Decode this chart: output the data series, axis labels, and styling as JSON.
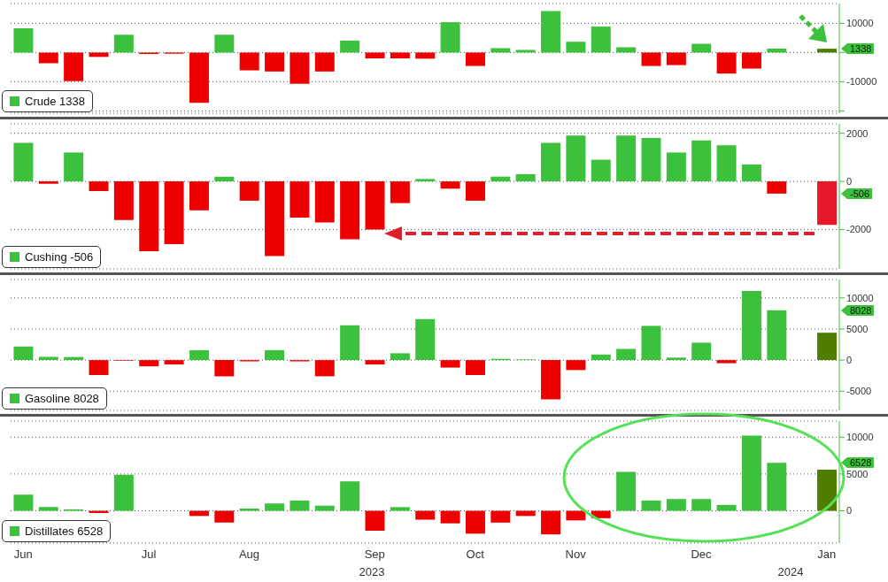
{
  "chart_data": [
    {
      "type": "bar",
      "categories": [
        null,
        null,
        null,
        null,
        null,
        null,
        null,
        null,
        null,
        null,
        null,
        null,
        null,
        null,
        null,
        null,
        null,
        null,
        null,
        null,
        null,
        null,
        null,
        null,
        null,
        null,
        null,
        null,
        null,
        null,
        null,
        null,
        null
      ],
      "series": [
        {
          "name": "Crude 1338",
          "color": "#3cc13c",
          "values": [
            8300,
            -3700,
            -9800,
            -1500,
            6100,
            -500,
            -400,
            -17200,
            6100,
            -6100,
            -6500,
            -10700,
            -6500,
            4100,
            -2000,
            -2000,
            -2100,
            10400,
            -4600,
            1500,
            900,
            14200,
            3700,
            8900,
            1800,
            -4600,
            -4300,
            3000,
            -7200,
            -5500,
            1338,
            null,
            1300
          ],
          "colors": [
            "#3cc13c",
            "#ee0000",
            "#ee0000",
            "#ee0000",
            "#3cc13c",
            "#ee0000",
            "#ee0000",
            "#ee0000",
            "#3cc13c",
            "#ee0000",
            "#ee0000",
            "#ee0000",
            "#ee0000",
            "#3cc13c",
            "#ee0000",
            "#ee0000",
            "#ee0000",
            "#3cc13c",
            "#ee0000",
            "#3cc13c",
            "#3cc13c",
            "#3cc13c",
            "#3cc13c",
            "#3cc13c",
            "#3cc13c",
            "#ee0000",
            "#ee0000",
            "#3cc13c",
            "#ee0000",
            "#ee0000",
            "#3cc13c",
            null,
            "#4e7d00"
          ]
        }
      ],
      "ylim": [
        -20800,
        16800
      ],
      "yticks": [
        {
          "value": -20000,
          "label": null
        },
        -10000,
        {
          "value": 0,
          "label": null
        },
        10000
      ],
      "grid": "y",
      "legend": "bottom left",
      "tick_labels": "y",
      "annotations": [
        "1338"
      ]
    },
    {
      "type": "bar",
      "categories": [
        null,
        null,
        null,
        null,
        null,
        null,
        null,
        null,
        null,
        null,
        null,
        null,
        null,
        null,
        null,
        null,
        null,
        null,
        null,
        null,
        null,
        null,
        null,
        null,
        null,
        null,
        null,
        null,
        null,
        null,
        null,
        null,
        null
      ],
      "series": [
        {
          "name": "Cushing -506",
          "color": "#3cc13c",
          "values": [
            1600,
            -100,
            1200,
            -400,
            -1600,
            -2900,
            -2600,
            -1200,
            200,
            -800,
            -3100,
            -1500,
            -1700,
            -2400,
            -2000,
            -900,
            100,
            -300,
            -800,
            200,
            300,
            1600,
            1900,
            900,
            1900,
            1800,
            1200,
            1700,
            1500,
            700,
            -506,
            null,
            -1800
          ],
          "colors": [
            "#3cc13c",
            "#ee0000",
            "#3cc13c",
            "#ee0000",
            "#ee0000",
            "#ee0000",
            "#ee0000",
            "#ee0000",
            "#3cc13c",
            "#ee0000",
            "#ee0000",
            "#ee0000",
            "#ee0000",
            "#ee0000",
            "#ee0000",
            "#ee0000",
            "#3cc13c",
            "#ee0000",
            "#ee0000",
            "#3cc13c",
            "#3cc13c",
            "#3cc13c",
            "#3cc13c",
            "#3cc13c",
            "#3cc13c",
            "#3cc13c",
            "#3cc13c",
            "#3cc13c",
            "#3cc13c",
            "#3cc13c",
            "#ee0000",
            null,
            "#e8182b"
          ]
        }
      ],
      "ylim": [
        -3630,
        2390
      ],
      "yticks": [
        -2000,
        0,
        2000
      ],
      "grid": "y",
      "legend": "bottom left",
      "tick_labels": "y",
      "annotations": [
        "-506"
      ]
    },
    {
      "type": "bar",
      "categories": [
        null,
        null,
        null,
        null,
        null,
        null,
        null,
        null,
        null,
        null,
        null,
        null,
        null,
        null,
        null,
        null,
        null,
        null,
        null,
        null,
        null,
        null,
        null,
        null,
        null,
        null,
        null,
        null,
        null,
        null,
        null,
        null,
        null
      ],
      "series": [
        {
          "name": "Gasoline 8028",
          "color": "#3cc13c",
          "values": [
            2200,
            500,
            500,
            -2400,
            -100,
            -1000,
            -700,
            1600,
            -2600,
            -200,
            1600,
            -200,
            -2600,
            5600,
            -700,
            1100,
            6600,
            -1200,
            -2400,
            200,
            100,
            -6300,
            -1600,
            900,
            1800,
            5500,
            400,
            2800,
            -500,
            11100,
            8028,
            null,
            4400
          ],
          "colors": [
            "#3cc13c",
            "#3cc13c",
            "#3cc13c",
            "#ee0000",
            "#ee0000",
            "#ee0000",
            "#ee0000",
            "#3cc13c",
            "#ee0000",
            "#ee0000",
            "#3cc13c",
            "#ee0000",
            "#ee0000",
            "#3cc13c",
            "#ee0000",
            "#3cc13c",
            "#3cc13c",
            "#ee0000",
            "#ee0000",
            "#3cc13c",
            "#3cc13c",
            "#ee0000",
            "#ee0000",
            "#3cc13c",
            "#3cc13c",
            "#3cc13c",
            "#3cc13c",
            "#3cc13c",
            "#ee0000",
            "#3cc13c",
            "#3cc13c",
            null,
            "#4e7d00"
          ]
        }
      ],
      "ylim": [
        -8090,
        12960
      ],
      "yticks": [
        -5000,
        0,
        5000,
        10000
      ],
      "grid": "y",
      "legend": "bottom left",
      "tick_labels": "y",
      "annotations": [
        "8028"
      ]
    },
    {
      "type": "bar",
      "categories": [
        "Jun",
        null,
        null,
        null,
        null,
        "Jul",
        null,
        null,
        null,
        "Aug",
        null,
        null,
        null,
        null,
        "Sep",
        null,
        null,
        null,
        "Oct",
        null,
        null,
        null,
        "Nov",
        null,
        null,
        null,
        null,
        "Dec",
        null,
        null,
        null,
        null,
        "Jan"
      ],
      "series": [
        {
          "name": "Distillates 6528",
          "color": "#3cc13c",
          "values": [
            2200,
            500,
            200,
            -300,
            4900,
            null,
            null,
            -700,
            -1600,
            300,
            1000,
            1400,
            700,
            4000,
            -2700,
            500,
            -1200,
            -1700,
            -3100,
            -1600,
            -700,
            -3200,
            -1300,
            -1000,
            5300,
            1400,
            1600,
            1600,
            800,
            10200,
            6528,
            null,
            5600
          ],
          "colors": [
            "#3cc13c",
            "#3cc13c",
            "#3cc13c",
            "#ee0000",
            "#3cc13c",
            "#ee0000",
            "#ee0000",
            "#ee0000",
            "#ee0000",
            "#3cc13c",
            "#3cc13c",
            "#3cc13c",
            "#3cc13c",
            "#3cc13c",
            "#ee0000",
            "#3cc13c",
            "#ee0000",
            "#ee0000",
            "#ee0000",
            "#ee0000",
            "#ee0000",
            "#ee0000",
            "#ee0000",
            "#ee0000",
            "#3cc13c",
            "#3cc13c",
            "#3cc13c",
            "#3cc13c",
            "#3cc13c",
            "#3cc13c",
            "#3cc13c",
            null,
            "#4e7d00"
          ]
        }
      ],
      "ylim": [
        -4380,
        12190
      ],
      "yticks": [
        0,
        5000,
        10000
      ],
      "grid": "y",
      "legend": "bottom left",
      "annotations": [
        "6528",
        "2023",
        "2024"
      ]
    }
  ]
}
